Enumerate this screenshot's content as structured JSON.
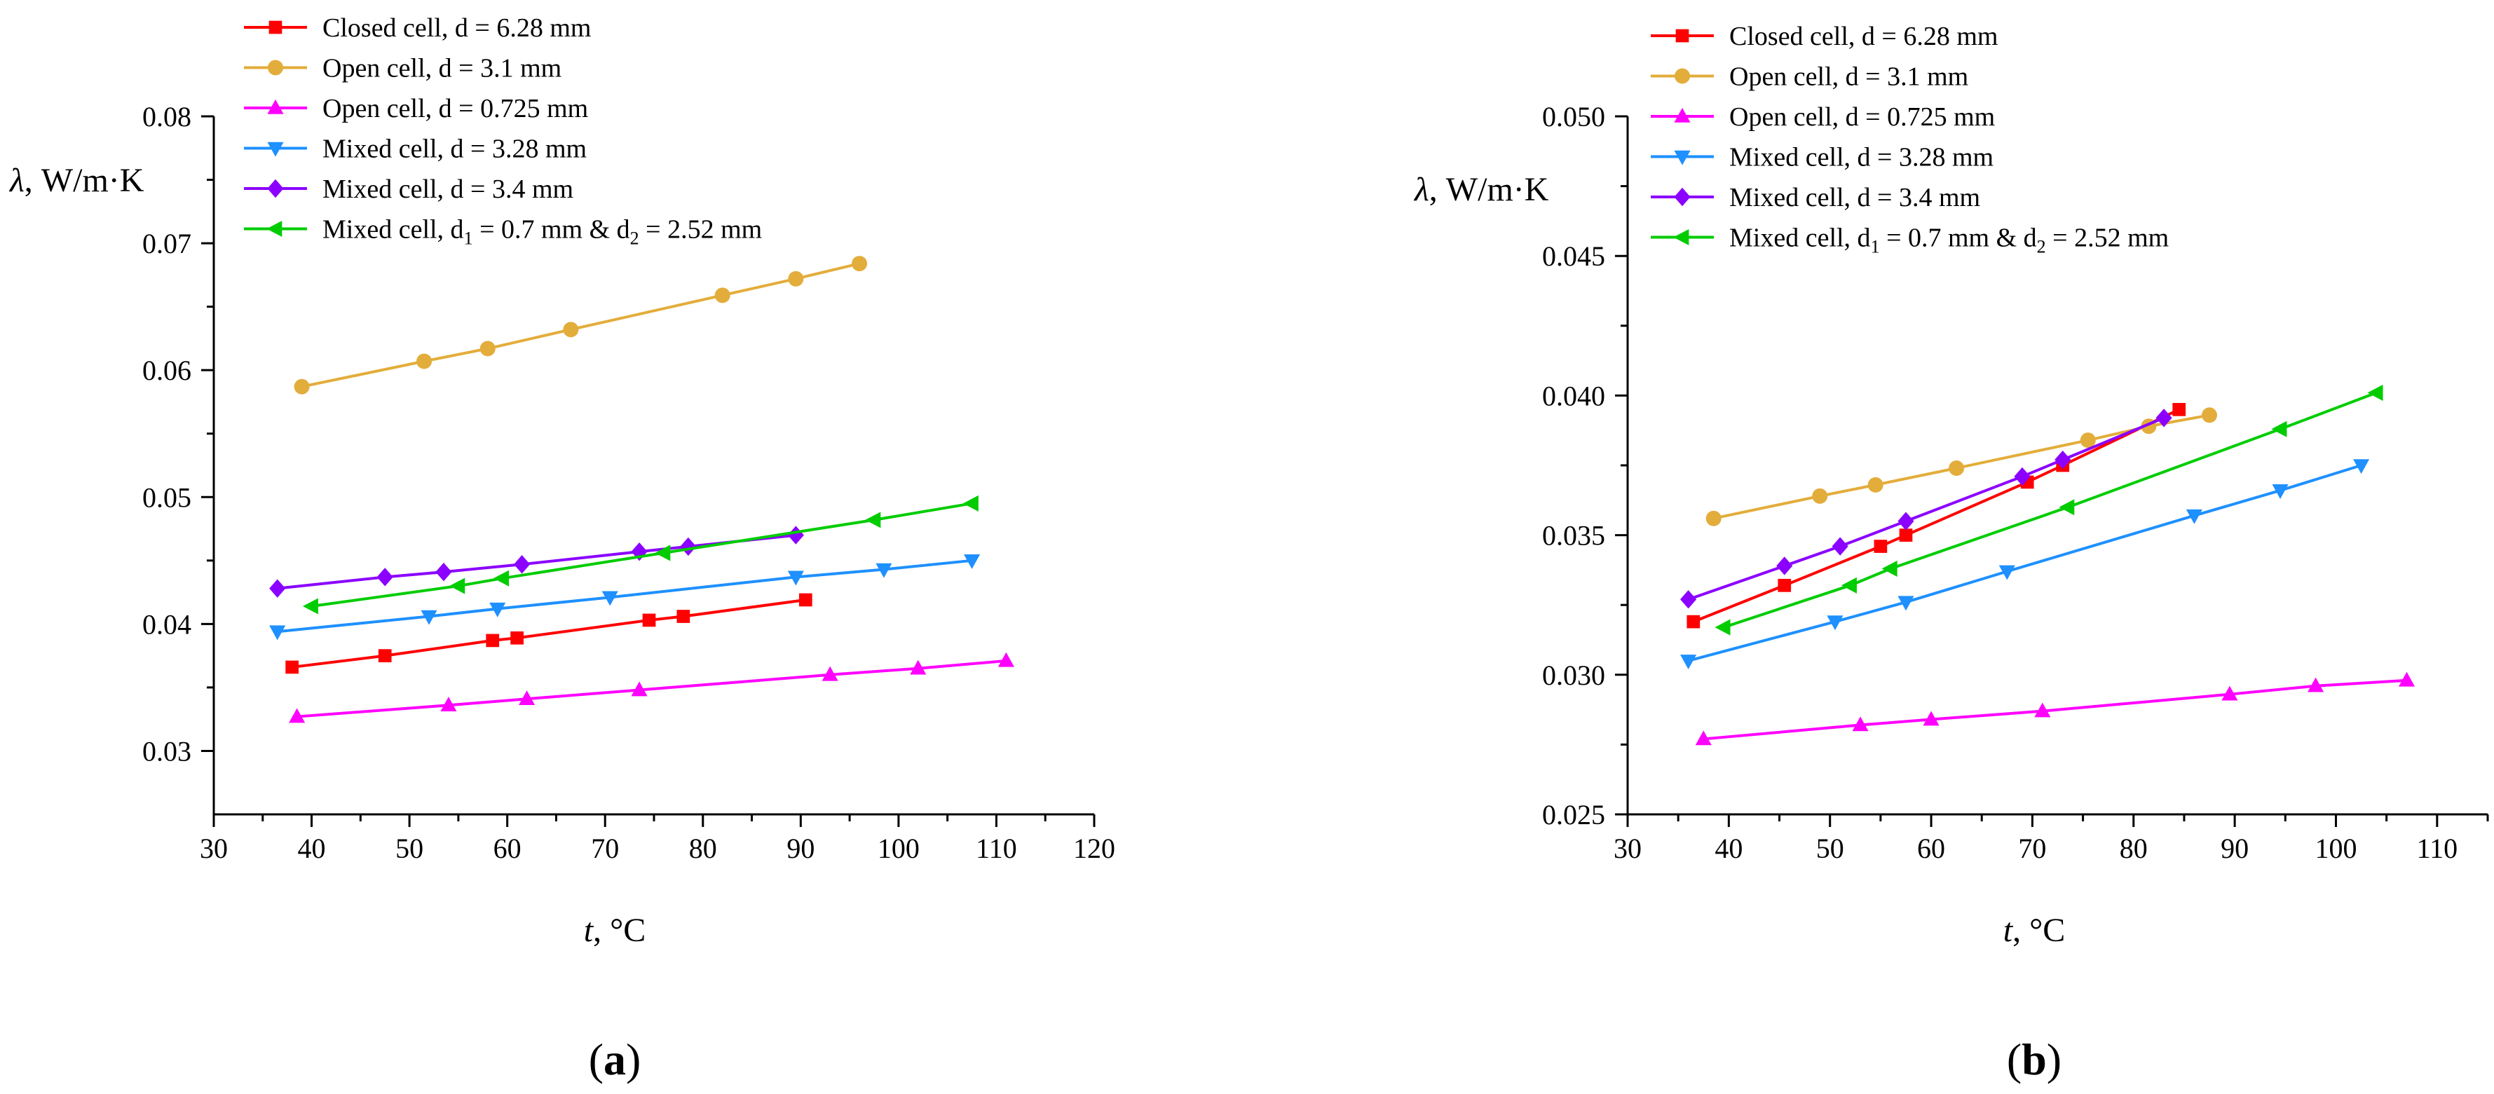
{
  "chart_data": [
    {
      "type": "line",
      "panel_label": "a",
      "xlabel_var": "t",
      "xlabel_unit": ", °C",
      "ylabel_var": "λ",
      "ylabel_unit": ", W/m·K",
      "xlim": [
        30,
        120
      ],
      "ylim": [
        0.025,
        0.08
      ],
      "xticks": [
        30,
        40,
        50,
        60,
        70,
        80,
        90,
        100,
        110,
        120
      ],
      "yticks": [
        0.03,
        0.04,
        0.05,
        0.06,
        0.07,
        0.08
      ],
      "ytick_labels": [
        "0.03",
        "0.04",
        "0.05",
        "0.06",
        "0.07",
        "0.08"
      ],
      "legend_position": "top-left",
      "series": [
        {
          "name": "Closed cell, d = 6.28 mm",
          "color": "#ff0000",
          "marker": "square",
          "x": [
            38.0,
            47.5,
            58.5,
            61.0,
            74.5,
            78.0,
            90.5
          ],
          "y": [
            0.0366,
            0.0375,
            0.0387,
            0.0389,
            0.0403,
            0.0406,
            0.0419
          ]
        },
        {
          "name": "Open cell, d = 3.1 mm",
          "color": "#e3ad3b",
          "marker": "circle",
          "x": [
            39.0,
            51.5,
            58.0,
            66.5,
            82.0,
            89.5,
            96.0
          ],
          "y": [
            0.0587,
            0.0607,
            0.0617,
            0.0632,
            0.0659,
            0.0672,
            0.0684
          ]
        },
        {
          "name": "Open cell, d = 0.725 mm",
          "color": "#ff00ff",
          "marker": "triangle-up",
          "x": [
            38.5,
            54.0,
            62.0,
            73.5,
            93.0,
            102.0,
            111.0
          ],
          "y": [
            0.0327,
            0.0336,
            0.0341,
            0.0348,
            0.036,
            0.0365,
            0.0371
          ]
        },
        {
          "name": "Mixed cell, d = 3.28 mm",
          "color": "#1e90ff",
          "marker": "triangle-down",
          "x": [
            36.5,
            52.0,
            59.0,
            70.5,
            89.5,
            98.5,
            107.5
          ],
          "y": [
            0.0394,
            0.0406,
            0.0412,
            0.0421,
            0.0437,
            0.0443,
            0.045
          ]
        },
        {
          "name": "Mixed cell, d = 3.4 mm",
          "color": "#8b00ff",
          "marker": "diamond",
          "x": [
            36.5,
            47.5,
            53.5,
            61.5,
            73.5,
            78.5,
            89.5
          ],
          "y": [
            0.0428,
            0.0437,
            0.0441,
            0.0447,
            0.0457,
            0.0461,
            0.047
          ]
        },
        {
          "name": "Mixed cell, d₁ = 0.7 mm & d₂ = 2.52 mm",
          "color": "#00cc00",
          "marker": "triangle-left",
          "name_parts": {
            "prefix": "Mixed cell, d",
            "sub1": "1",
            "mid": " = 0.7 mm & d",
            "sub2": "2",
            "suffix": " = 2.52 mm"
          },
          "x": [
            40.0,
            55.0,
            59.5,
            76.0,
            97.5,
            107.5
          ],
          "y": [
            0.0414,
            0.043,
            0.0436,
            0.0456,
            0.0482,
            0.0495
          ]
        }
      ]
    },
    {
      "type": "line",
      "panel_label": "b",
      "xlabel_var": "t",
      "xlabel_unit": ", °C",
      "ylabel_var": "λ",
      "ylabel_unit": ", W/m·K",
      "xlim": [
        30,
        115
      ],
      "ylim": [
        0.025,
        0.05
      ],
      "xticks": [
        30,
        40,
        50,
        60,
        70,
        80,
        90,
        100,
        110
      ],
      "yticks": [
        0.025,
        0.03,
        0.035,
        0.04,
        0.045,
        0.05
      ],
      "ytick_labels": [
        "0.025",
        "0.030",
        "0.035",
        "0.040",
        "0.045",
        "0.050"
      ],
      "legend_position": "top-left",
      "series": [
        {
          "name": "Closed cell, d = 6.28 mm",
          "color": "#ff0000",
          "marker": "square",
          "x": [
            36.5,
            45.5,
            55.0,
            57.5,
            69.5,
            73.0,
            84.5
          ],
          "y": [
            0.0319,
            0.0332,
            0.0346,
            0.035,
            0.0369,
            0.0375,
            0.0395
          ]
        },
        {
          "name": "Open cell, d = 3.1 mm",
          "color": "#e3ad3b",
          "marker": "circle",
          "x": [
            38.5,
            49.0,
            54.5,
            62.5,
            75.5,
            81.5,
            87.5
          ],
          "y": [
            0.0356,
            0.0364,
            0.0368,
            0.0374,
            0.0384,
            0.0389,
            0.0393
          ]
        },
        {
          "name": "Open cell, d = 0.725 mm",
          "color": "#ff00ff",
          "marker": "triangle-up",
          "x": [
            37.5,
            53.0,
            60.0,
            71.0,
            89.5,
            98.0,
            107.0
          ],
          "y": [
            0.0277,
            0.0282,
            0.0284,
            0.0287,
            0.0293,
            0.0296,
            0.0298
          ]
        },
        {
          "name": "Mixed cell, d = 3.28 mm",
          "color": "#1e90ff",
          "marker": "triangle-down",
          "x": [
            36.0,
            50.5,
            57.5,
            67.5,
            86.0,
            94.5,
            102.5
          ],
          "y": [
            0.0305,
            0.0319,
            0.0326,
            0.0337,
            0.0357,
            0.0366,
            0.0375
          ]
        },
        {
          "name": "Mixed cell, d = 3.4 mm",
          "color": "#8b00ff",
          "marker": "diamond",
          "x": [
            36.0,
            45.5,
            51.0,
            57.5,
            69.0,
            73.0,
            83.0
          ],
          "y": [
            0.0327,
            0.0339,
            0.0346,
            0.0355,
            0.0371,
            0.0377,
            0.0392
          ]
        },
        {
          "name": "Mixed cell, d₁ = 0.7 mm & d₂ = 2.52 mm",
          "color": "#00cc00",
          "marker": "triangle-left",
          "name_parts": {
            "prefix": "Mixed cell, d",
            "sub1": "1",
            "mid": " = 0.7 mm & d",
            "sub2": "2",
            "suffix": " = 2.52 mm"
          },
          "x": [
            39.5,
            52.0,
            56.0,
            73.5,
            94.5,
            104.0
          ],
          "y": [
            0.0317,
            0.0332,
            0.0338,
            0.036,
            0.0388,
            0.0401
          ]
        }
      ]
    }
  ]
}
